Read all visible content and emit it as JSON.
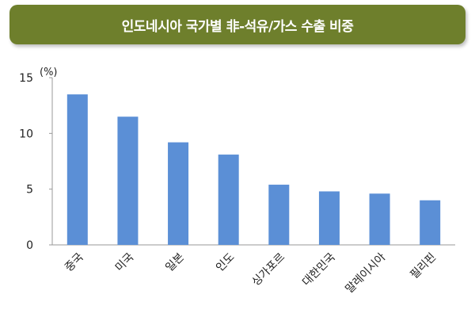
{
  "title": "인도네시아 국가별 非-석유/가스 수출 비중",
  "colors": {
    "title_bg": "#6e7f2c",
    "bar": "#5b8fd6",
    "axis": "#999999"
  },
  "chart_data": {
    "type": "bar",
    "title": "인도네시아 국가별 非-석유/가스 수출 비중",
    "unit": "(%)",
    "categories": [
      "중국",
      "미국",
      "일본",
      "인도",
      "싱가포르",
      "대한민국",
      "말레이시아",
      "필리핀"
    ],
    "values": [
      13.5,
      11.5,
      9.2,
      8.1,
      5.4,
      4.8,
      4.6,
      4.0
    ],
    "ylim": [
      0,
      15
    ],
    "yticks": [
      0,
      5,
      10,
      15
    ],
    "grid": false,
    "legend": "none"
  }
}
